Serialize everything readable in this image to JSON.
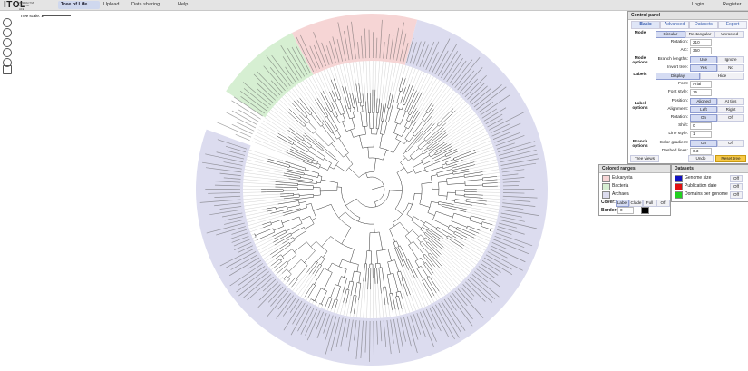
{
  "header": {
    "logo": "ITOL",
    "tagline": "INTERACTIVE TREE OF LIFE",
    "nav": [
      "Tree of Life",
      "Upload",
      "Data sharing",
      "Help"
    ],
    "account": [
      "Login",
      "Register"
    ]
  },
  "tree_scale": "Tree scale: 1",
  "control_panel": {
    "title": "Control panel",
    "tabs": [
      "Basic",
      "Advanced",
      "Datasets",
      "Export"
    ],
    "active_tab": 0,
    "sections": [
      "Mode",
      "Mode options",
      "Labels",
      "Label options",
      "Branch options"
    ],
    "rows": [
      {
        "options": [
          "Circular",
          "Rectangular",
          "Unrooted"
        ],
        "active": 0
      },
      {
        "label": "Rotation:",
        "input": "210"
      },
      {
        "label": "Arc:",
        "input": "350"
      },
      {
        "label": "Branch lengths:",
        "options": [
          "Use",
          "Ignore"
        ],
        "active": 0
      },
      {
        "label": "Invert tree:",
        "options": [
          "Yes",
          "No"
        ],
        "active": 0
      },
      {
        "options": [
          "Display",
          "Hide"
        ],
        "active": 0
      },
      {
        "label": "Font:",
        "input": "Arial"
      },
      {
        "label": "Font style:",
        "input": "15"
      },
      {
        "label": "Position:",
        "options": [
          "Aligned",
          "At tips"
        ],
        "active": 0
      },
      {
        "label": "Alignment:",
        "options": [
          "Left",
          "Right"
        ],
        "active": 0
      },
      {
        "label": "Rotation:",
        "options": [
          "On",
          "Off"
        ],
        "active": 0
      },
      {
        "label": "Shift:",
        "input": "0"
      },
      {
        "label": "Line style:",
        "input": "1"
      },
      {
        "label": "Color gradient:",
        "options": [
          "On",
          "Off"
        ],
        "active": 0
      },
      {
        "label": "Dashed lines:",
        "input": "0.3"
      }
    ],
    "footer": [
      "Tree views",
      "Undo",
      "Reset tree"
    ]
  },
  "colored_ranges": {
    "title": "Colored ranges",
    "items": [
      {
        "name": "Eukaryota",
        "color": "#f6d5d5"
      },
      {
        "name": "Bacteria",
        "color": "#d6efd2"
      },
      {
        "name": "Archaea",
        "color": "#dcdcef"
      }
    ],
    "cover_label": "Cover:",
    "cover_options": [
      "Label",
      "Clade",
      "Full",
      "Off"
    ],
    "cover_active": 0,
    "border_label": "Border:",
    "border_value": "0"
  },
  "datasets": {
    "title": "Datasets",
    "items": [
      {
        "name": "Genome size",
        "color": "#1010c0",
        "state": "Off"
      },
      {
        "name": "Publication date",
        "color": "#e01010",
        "state": "Off"
      },
      {
        "name": "Domains per genome",
        "color": "#20d020",
        "state": "Off"
      }
    ]
  }
}
